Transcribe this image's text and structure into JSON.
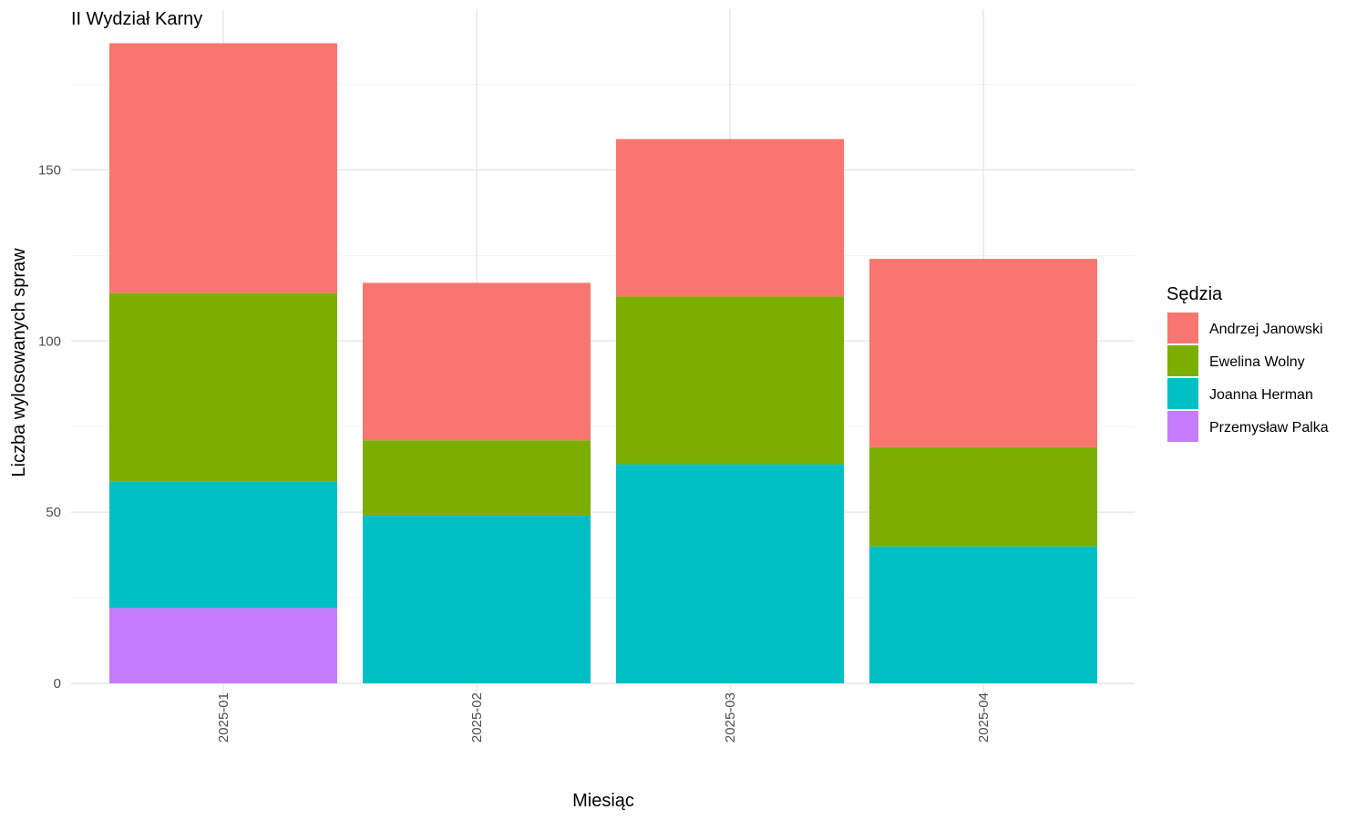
{
  "chart_data": {
    "type": "bar",
    "stacked": true,
    "title": "II Wydział Karny",
    "xlabel": "Miesiąc",
    "ylabel": "Liczba wylosowanych spraw",
    "categories": [
      "2025-01",
      "2025-02",
      "2025-03",
      "2025-04"
    ],
    "y_ticks": [
      0,
      50,
      100,
      150
    ],
    "ylim": [
      0,
      190
    ],
    "legend_title": "Sędzia",
    "legend_position": "right",
    "grid": true,
    "series": [
      {
        "name": "Przemysław Palka",
        "color": "#C77CFF",
        "values": [
          22,
          0,
          0,
          0
        ]
      },
      {
        "name": "Joanna Herman",
        "color": "#00BFC4",
        "values": [
          37,
          49,
          64,
          40
        ]
      },
      {
        "name": "Ewelina Wolny",
        "color": "#7CAE00",
        "values": [
          55,
          22,
          49,
          29
        ]
      },
      {
        "name": "Andrzej Janowski",
        "color": "#F8766D",
        "values": [
          73,
          46,
          46,
          55
        ]
      }
    ],
    "legend_order": [
      "Andrzej Janowski",
      "Ewelina Wolny",
      "Joanna Herman",
      "Przemysław Palka"
    ]
  }
}
